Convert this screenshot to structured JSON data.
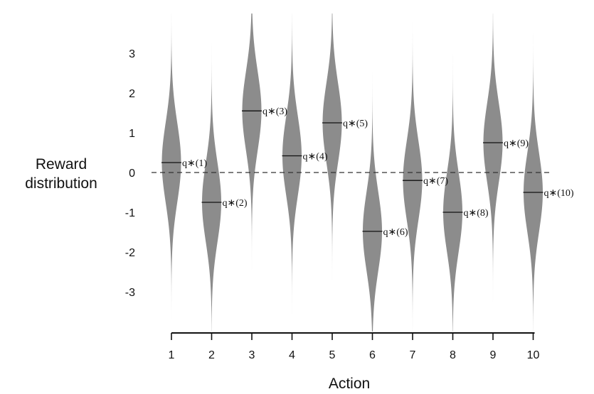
{
  "chart_data": {
    "type": "violin",
    "xlabel": "Action",
    "ylabel": [
      "Reward",
      "distribution"
    ],
    "categories": [
      "1",
      "2",
      "3",
      "4",
      "5",
      "6",
      "7",
      "8",
      "9",
      "10"
    ],
    "values": [
      0.25,
      -0.75,
      1.55,
      0.42,
      1.25,
      -1.48,
      -0.2,
      -1.0,
      0.75,
      -0.5
    ],
    "value_labels": [
      "q∗(1)",
      "q∗(2)",
      "q∗(3)",
      "q∗(4)",
      "q∗(5)",
      "q∗(6)",
      "q∗(7)",
      "q∗(8)",
      "q∗(9)",
      "q∗(10)"
    ],
    "distribution": "normal",
    "std": 1,
    "yticks": [
      "3",
      "2",
      "1",
      "0",
      "-1",
      "-2",
      "-3"
    ],
    "ylim": [
      -4,
      4
    ],
    "reference_line_y": 0,
    "fill_color": "#8c8c8c",
    "line_color": "#111111",
    "grid": false
  }
}
